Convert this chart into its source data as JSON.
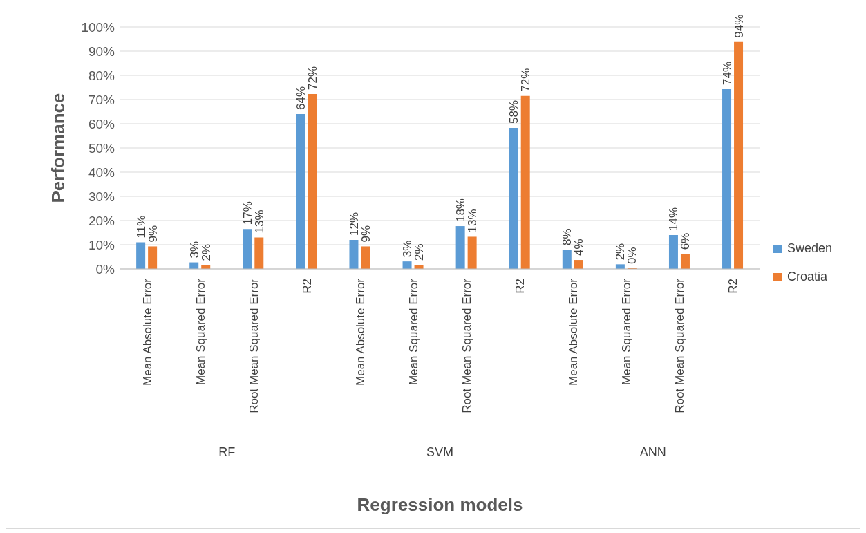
{
  "chart_data": {
    "type": "bar",
    "xlabel": "Regression models",
    "ylabel": "Performance",
    "categories": [
      "Mean Absolute Error",
      "Mean Squared Error",
      "Root Mean Squared Error",
      "R2",
      "Mean Absolute Error",
      "Mean Squared Error",
      "Root Mean Squared Error",
      "R2",
      "Mean Absolute Error",
      "Mean Squared Error",
      "Root Mean Squared Error",
      "R2"
    ],
    "series": [
      {
        "name": "Sweden",
        "color": "#5b9bd5",
        "values": [
          11,
          2.7,
          16.5,
          64,
          12,
          3.1,
          17.7,
          58.3,
          8,
          1.9,
          14,
          74.3
        ],
        "value_labels": [
          "11%",
          "3%",
          "17%",
          "64%",
          "12%",
          "3%",
          "18%",
          "58%",
          "8%",
          "2%",
          "14%",
          "74%"
        ]
      },
      {
        "name": "Croatia",
        "color": "#ed7d31",
        "values": [
          9.3,
          1.6,
          13,
          72.3,
          9.3,
          1.7,
          13.3,
          71.5,
          3.7,
          0.3,
          6.2,
          93.8
        ],
        "value_labels": [
          "9%",
          "2%",
          "13%",
          "72%",
          "9%",
          "2%",
          "13%",
          "72%",
          "4%",
          "0%",
          "6%",
          "94%"
        ]
      }
    ],
    "annotations": [
      "RF",
      "SVM",
      "ANN"
    ],
    "ylim": [
      0,
      100
    ],
    "yticks": [
      {
        "value": 0,
        "label": "0%"
      },
      {
        "value": 10,
        "label": "10%"
      },
      {
        "value": 20,
        "label": "20%"
      },
      {
        "value": 30,
        "label": "30%"
      },
      {
        "value": 40,
        "label": "40%"
      },
      {
        "value": 50,
        "label": "50%"
      },
      {
        "value": 60,
        "label": "60%"
      },
      {
        "value": 70,
        "label": "70%"
      },
      {
        "value": 80,
        "label": "80%"
      },
      {
        "value": 90,
        "label": "90%"
      },
      {
        "value": 100,
        "label": "100%"
      }
    ],
    "grid": "y",
    "legend": "right"
  }
}
